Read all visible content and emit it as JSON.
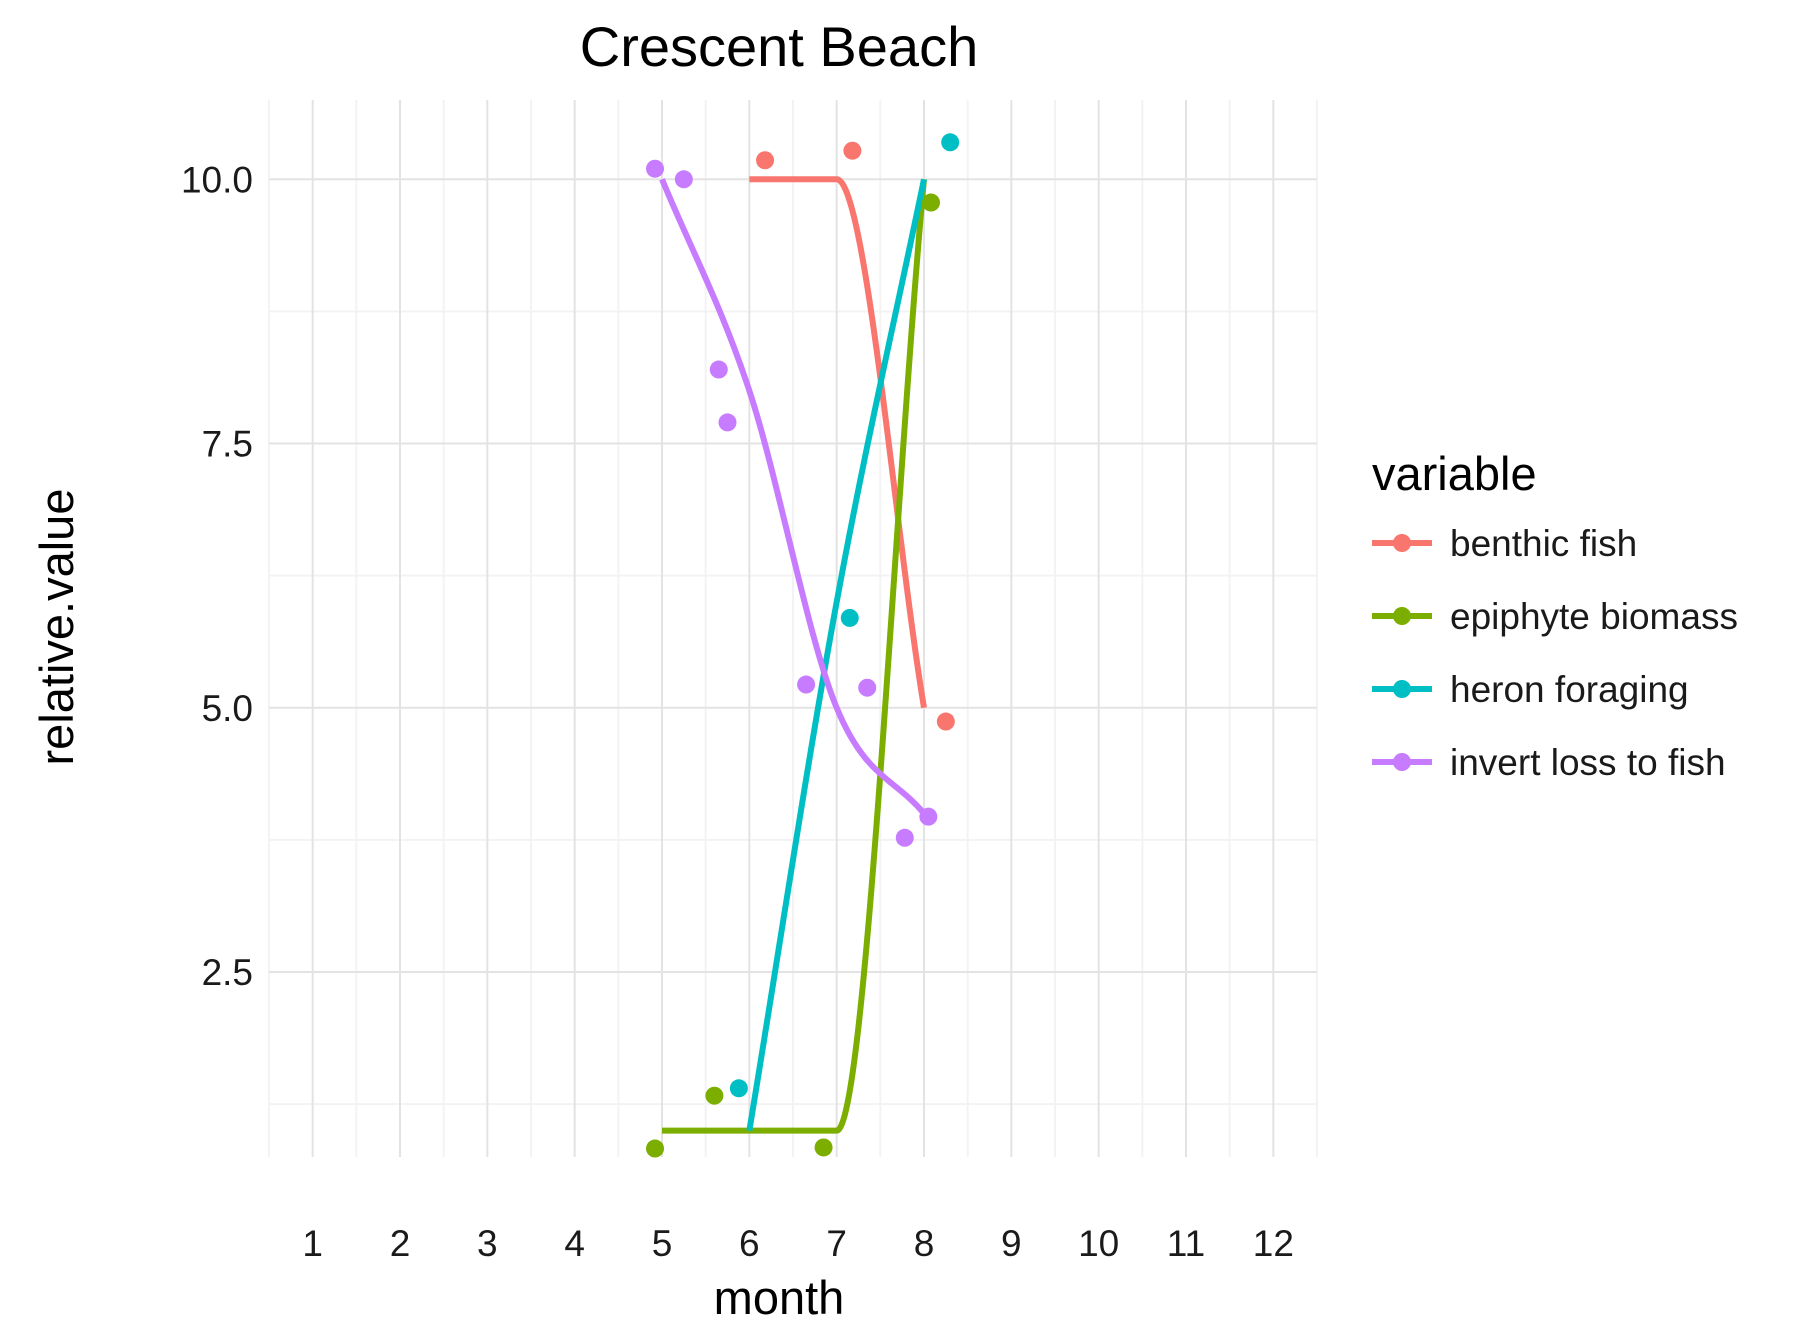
{
  "chart_data": {
    "type": "line",
    "title": "Crescent Beach",
    "xlabel": "month",
    "ylabel": "relative.value",
    "xlim": [
      0.5,
      12.5
    ],
    "ylim": [
      0.75,
      10.75
    ],
    "x_ticks": [
      1,
      2,
      3,
      4,
      5,
      6,
      7,
      8,
      9,
      10,
      11,
      12
    ],
    "x_tick_labels": [
      "1",
      "2",
      "3",
      "4",
      "5",
      "6",
      "7",
      "8",
      "9",
      "10",
      "11",
      "12"
    ],
    "y_ticks": [
      2.5,
      5.0,
      7.5,
      10.0
    ],
    "y_tick_labels": [
      "2.5",
      "5.0",
      "7.5",
      "10.0"
    ],
    "grid": true,
    "legend": {
      "title": "variable",
      "position": "right"
    },
    "series": [
      {
        "name": "benthic fish",
        "color": "#F8766D",
        "line": [
          {
            "x": 6,
            "y": 10
          },
          {
            "x": 7,
            "y": 10
          },
          {
            "x": 8,
            "y": 5
          }
        ],
        "points": [
          {
            "x": 6.18,
            "y": 10.18
          },
          {
            "x": 7.18,
            "y": 10.27
          },
          {
            "x": 8.25,
            "y": 4.87
          }
        ]
      },
      {
        "name": "epiphyte biomass",
        "color": "#7CAE00",
        "line": [
          {
            "x": 5,
            "y": 1
          },
          {
            "x": 7,
            "y": 1
          },
          {
            "x": 8,
            "y": 10
          }
        ],
        "points": [
          {
            "x": 4.92,
            "y": 0.83
          },
          {
            "x": 5.6,
            "y": 1.33
          },
          {
            "x": 6.85,
            "y": 0.84
          },
          {
            "x": 8.08,
            "y": 9.78
          }
        ]
      },
      {
        "name": "heron foraging",
        "color": "#00BFC4",
        "line": [
          {
            "x": 6,
            "y": 1
          },
          {
            "x": 7,
            "y": 6
          },
          {
            "x": 8,
            "y": 10
          }
        ],
        "points": [
          {
            "x": 5.88,
            "y": 1.4
          },
          {
            "x": 7.15,
            "y": 5.85
          },
          {
            "x": 8.3,
            "y": 10.35
          }
        ]
      },
      {
        "name": "invert loss to fish",
        "color": "#C77CFF",
        "line": [
          {
            "x": 5,
            "y": 10
          },
          {
            "x": 6,
            "y": 8
          },
          {
            "x": 7,
            "y": 5
          },
          {
            "x": 8,
            "y": 4
          }
        ],
        "points": [
          {
            "x": 4.92,
            "y": 10.1
          },
          {
            "x": 5.25,
            "y": 10.0
          },
          {
            "x": 5.65,
            "y": 8.2
          },
          {
            "x": 5.75,
            "y": 7.7
          },
          {
            "x": 6.65,
            "y": 5.22
          },
          {
            "x": 7.35,
            "y": 5.19
          },
          {
            "x": 7.78,
            "y": 3.77
          },
          {
            "x": 8.05,
            "y": 3.97
          }
        ]
      }
    ]
  }
}
